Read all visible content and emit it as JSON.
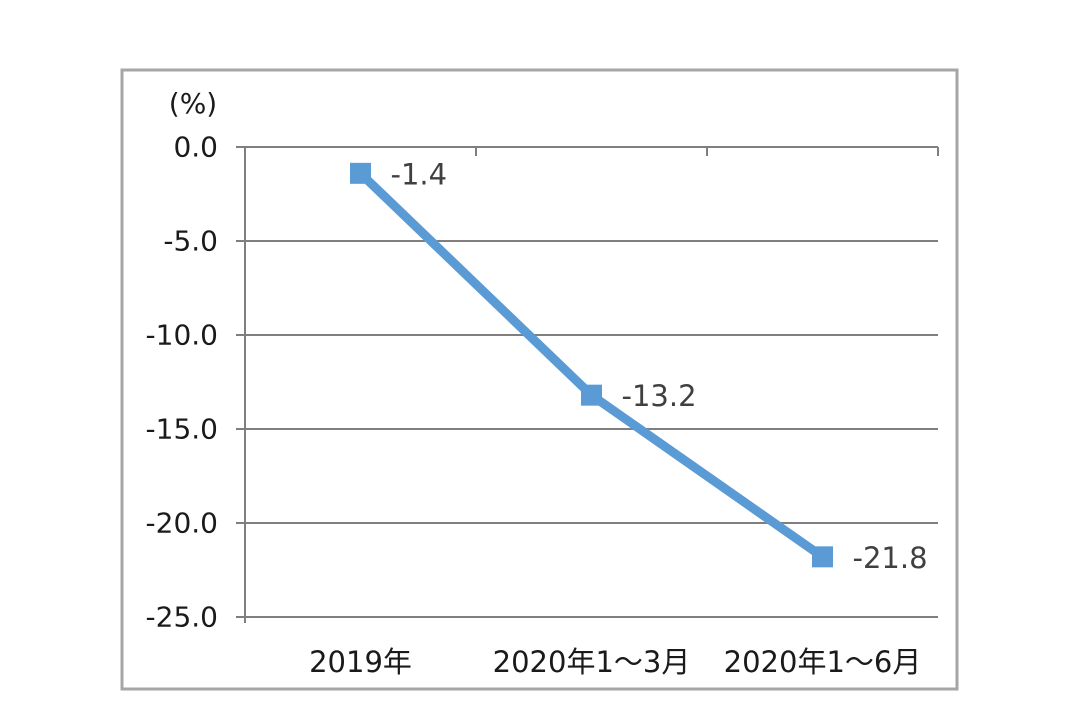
{
  "chart_data": {
    "type": "line",
    "title": "",
    "unit_label": "(%)",
    "categories": [
      "2019年",
      "2020年1～3月",
      "2020年1～6月"
    ],
    "values": [
      -1.4,
      -13.2,
      -21.8
    ],
    "point_labels": [
      "-1.4",
      "-13.2",
      "-21.8"
    ],
    "yticks": [
      0,
      -5,
      -10,
      -15,
      -20,
      -25
    ],
    "ytick_labels": [
      "0.0",
      "-5.0",
      "-10.0",
      "-15.0",
      "-20.0",
      "-25.0"
    ],
    "ylim": [
      0,
      -25
    ],
    "grid": true,
    "legend": "none",
    "marker_shape": "square",
    "colors": {
      "line": "#5B9BD5",
      "marker": "#5B9BD5",
      "gridline": "#7F7F7F",
      "axis": "#7F7F7F",
      "frame_border": "#A6A6A6",
      "tick_label_text": "#1A1A1A",
      "point_label_text": "#404040",
      "background": "#FFFFFF"
    }
  }
}
